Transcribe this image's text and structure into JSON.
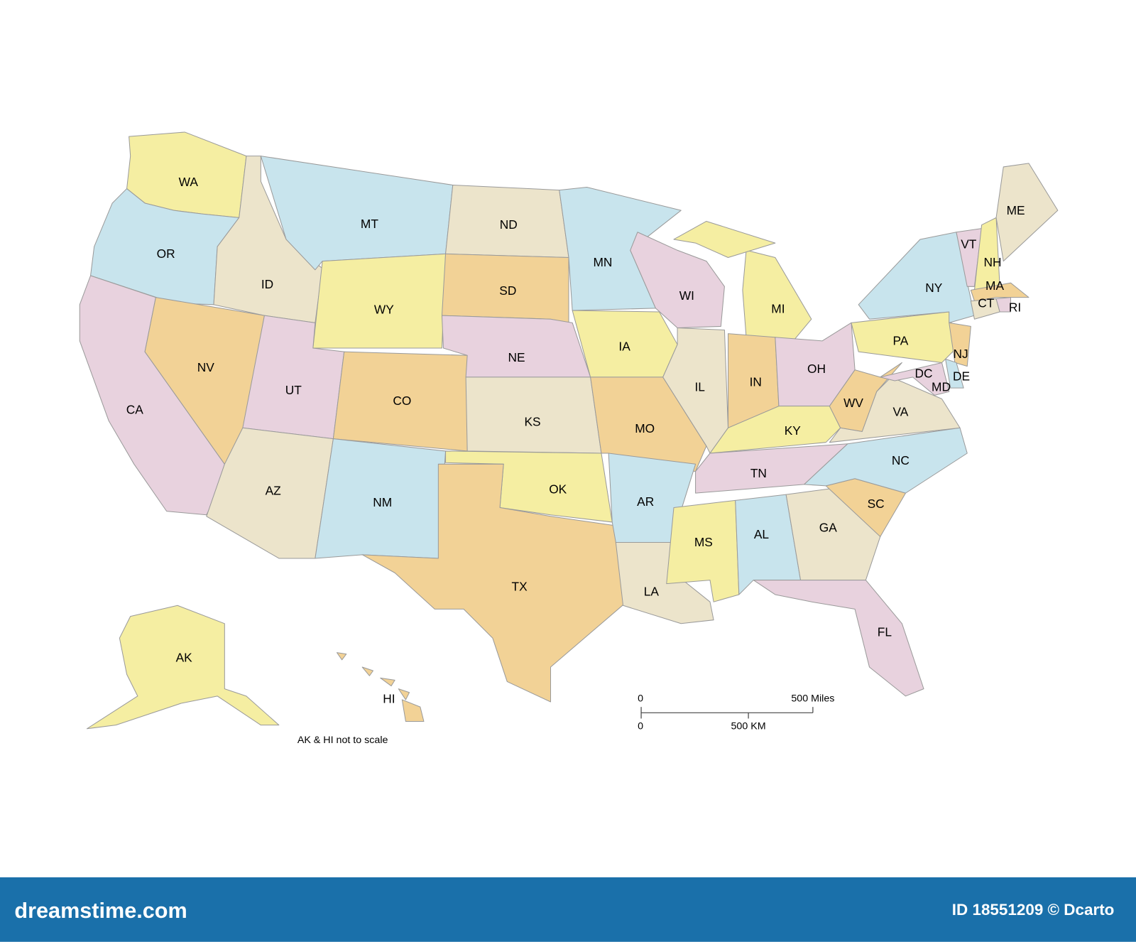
{
  "states": [
    "WA",
    "OR",
    "CA",
    "NV",
    "ID",
    "MT",
    "WY",
    "UT",
    "AZ",
    "CO",
    "NM",
    "ND",
    "SD",
    "NE",
    "KS",
    "OK",
    "TX",
    "MN",
    "IA",
    "MO",
    "AR",
    "LA",
    "WI",
    "IL",
    "MI",
    "IN",
    "OH",
    "KY",
    "TN",
    "MS",
    "AL",
    "GA",
    "FL",
    "SC",
    "NC",
    "VA",
    "WV",
    "PA",
    "NY",
    "VT",
    "NH",
    "ME",
    "MA",
    "CT",
    "RI",
    "NJ",
    "DE",
    "MD",
    "DC",
    "AK",
    "HI"
  ],
  "scale": {
    "miles_start": "0",
    "miles": "500 Miles",
    "km_start": "0",
    "km": "500 KM"
  },
  "note": "AK & HI not to scale",
  "footer": {
    "brand": "dreamstime.com",
    "id": "ID 18551209 © Dcarto"
  }
}
